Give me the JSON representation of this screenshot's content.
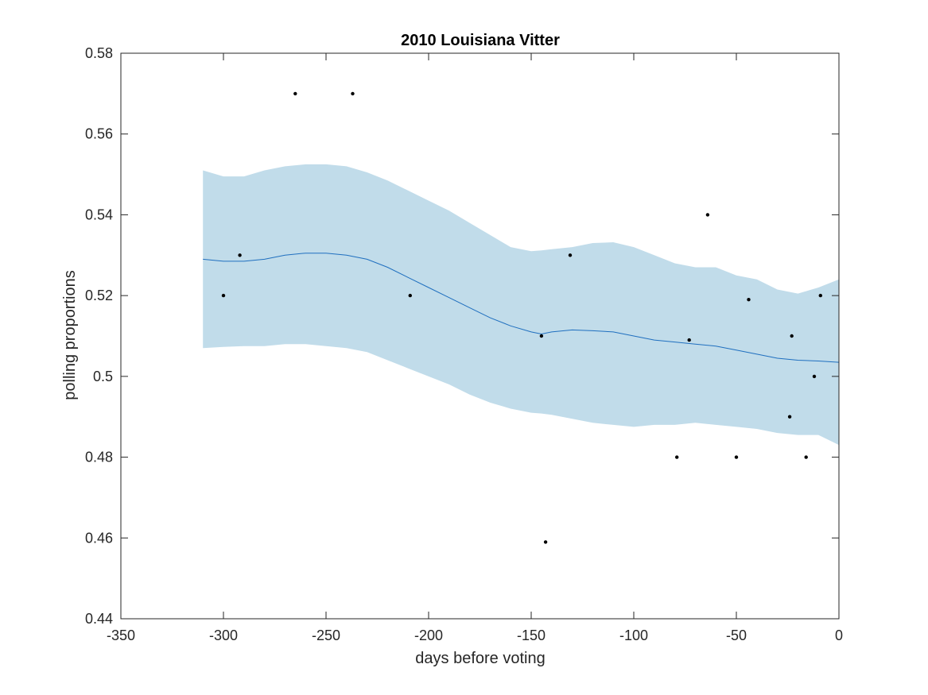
{
  "chart_data": {
    "type": "scatter",
    "title": "2010 Louisiana Vitter",
    "xlabel": "days before voting",
    "ylabel": "polling proportions",
    "xlim": [
      -350,
      0
    ],
    "ylim": [
      0.44,
      0.58
    ],
    "xticks": [
      -350,
      -300,
      -250,
      -200,
      -150,
      -100,
      -50,
      0
    ],
    "xtick_labels": [
      "-350",
      "-300",
      "-250",
      "-200",
      "-150",
      "-100",
      "-50",
      "0"
    ],
    "yticks": [
      0.44,
      0.46,
      0.48,
      0.5,
      0.52,
      0.54,
      0.56,
      0.58
    ],
    "ytick_labels": [
      "0.44",
      "0.46",
      "0.48",
      "0.5",
      "0.52",
      "0.54",
      "0.56",
      "0.58"
    ],
    "grid": false,
    "legend": "none",
    "colors": {
      "band": "#c1dcea",
      "mean_line": "#1f6fbf",
      "points": "#000000",
      "axes": "#262626"
    },
    "points": [
      {
        "x": -300,
        "y": 0.52
      },
      {
        "x": -292,
        "y": 0.53
      },
      {
        "x": -265,
        "y": 0.57
      },
      {
        "x": -237,
        "y": 0.57
      },
      {
        "x": -209,
        "y": 0.52
      },
      {
        "x": -145,
        "y": 0.51
      },
      {
        "x": -143,
        "y": 0.459
      },
      {
        "x": -131,
        "y": 0.53
      },
      {
        "x": -79,
        "y": 0.48
      },
      {
        "x": -73,
        "y": 0.509
      },
      {
        "x": -64,
        "y": 0.54
      },
      {
        "x": -50,
        "y": 0.48
      },
      {
        "x": -44,
        "y": 0.519
      },
      {
        "x": -24,
        "y": 0.49
      },
      {
        "x": -23,
        "y": 0.51
      },
      {
        "x": -16,
        "y": 0.48
      },
      {
        "x": -12,
        "y": 0.5
      },
      {
        "x": -9,
        "y": 0.52
      }
    ],
    "mean_curve": {
      "x": [
        -310,
        -300,
        -290,
        -280,
        -270,
        -260,
        -250,
        -240,
        -230,
        -220,
        -210,
        -200,
        -190,
        -180,
        -170,
        -160,
        -150,
        -145,
        -140,
        -130,
        -120,
        -110,
        -100,
        -90,
        -80,
        -70,
        -60,
        -50,
        -40,
        -30,
        -20,
        -10,
        0
      ],
      "y": [
        0.529,
        0.5285,
        0.5285,
        0.529,
        0.53,
        0.5305,
        0.5305,
        0.53,
        0.529,
        0.527,
        0.5245,
        0.522,
        0.5195,
        0.517,
        0.5145,
        0.5125,
        0.511,
        0.5105,
        0.511,
        0.5115,
        0.5113,
        0.511,
        0.51,
        0.509,
        0.5085,
        0.508,
        0.5075,
        0.5065,
        0.5055,
        0.5045,
        0.504,
        0.5038,
        0.5035
      ]
    },
    "band_upper": {
      "x": [
        -310,
        -300,
        -290,
        -280,
        -270,
        -260,
        -250,
        -240,
        -230,
        -220,
        -210,
        -200,
        -190,
        -180,
        -170,
        -160,
        -150,
        -145,
        -140,
        -130,
        -120,
        -110,
        -100,
        -90,
        -80,
        -70,
        -60,
        -50,
        -40,
        -30,
        -20,
        -10,
        0
      ],
      "y": [
        0.551,
        0.5495,
        0.5495,
        0.551,
        0.552,
        0.5525,
        0.5525,
        0.552,
        0.5505,
        0.5485,
        0.546,
        0.5435,
        0.541,
        0.538,
        0.535,
        0.532,
        0.531,
        0.5312,
        0.5315,
        0.532,
        0.533,
        0.5332,
        0.532,
        0.53,
        0.528,
        0.527,
        0.527,
        0.525,
        0.524,
        0.5215,
        0.5205,
        0.522,
        0.524
      ]
    },
    "band_lower": {
      "x": [
        -310,
        -300,
        -290,
        -280,
        -270,
        -260,
        -250,
        -240,
        -230,
        -220,
        -210,
        -200,
        -190,
        -180,
        -170,
        -160,
        -150,
        -145,
        -140,
        -130,
        -120,
        -110,
        -100,
        -90,
        -80,
        -70,
        -60,
        -50,
        -40,
        -30,
        -20,
        -10,
        0
      ],
      "y": [
        0.507,
        0.5073,
        0.5075,
        0.5075,
        0.508,
        0.508,
        0.5075,
        0.507,
        0.506,
        0.504,
        0.502,
        0.5,
        0.498,
        0.4955,
        0.4935,
        0.492,
        0.491,
        0.4908,
        0.4905,
        0.4895,
        0.4885,
        0.488,
        0.4875,
        0.488,
        0.488,
        0.4885,
        0.488,
        0.4875,
        0.487,
        0.486,
        0.4855,
        0.4855,
        0.483
      ]
    }
  }
}
